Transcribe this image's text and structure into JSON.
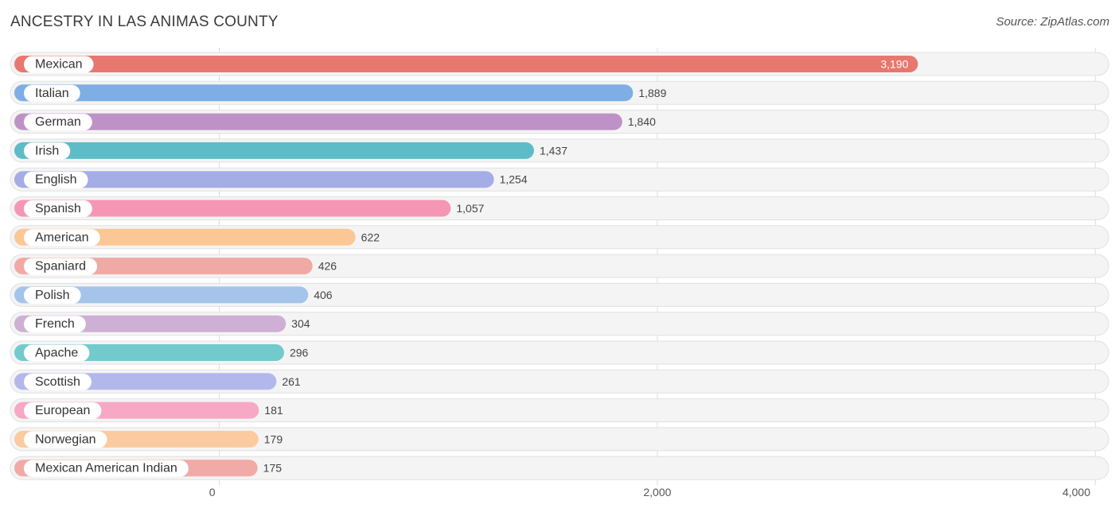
{
  "header": {
    "title": "ANCESTRY IN LAS ANIMAS COUNTY",
    "source": "Source: ZipAtlas.com"
  },
  "chart_data": {
    "type": "bar",
    "orientation": "horizontal",
    "title": "ANCESTRY IN LAS ANIMAS COUNTY",
    "categories": [
      "Mexican",
      "Italian",
      "German",
      "Irish",
      "English",
      "Spanish",
      "American",
      "Spaniard",
      "Polish",
      "French",
      "Apache",
      "Scottish",
      "European",
      "Norwegian",
      "Mexican American Indian"
    ],
    "values": [
      3190,
      1889,
      1840,
      1437,
      1254,
      1057,
      622,
      426,
      406,
      304,
      296,
      261,
      181,
      179,
      175
    ],
    "value_labels": [
      "3,190",
      "1,889",
      "1,840",
      "1,437",
      "1,254",
      "1,057",
      "622",
      "426",
      "406",
      "304",
      "296",
      "261",
      "181",
      "179",
      "175"
    ],
    "colors": [
      "#e8776f",
      "#7eaee4",
      "#be92c6",
      "#5ebcc8",
      "#a5ade6",
      "#f596b4",
      "#fbc795",
      "#f1a9a5",
      "#a4c4ea",
      "#cdb0d3",
      "#72cacc",
      "#b2b8ec",
      "#f7a8c4",
      "#fbcb9f",
      "#f1aaa8"
    ],
    "xlim": [
      0,
      4000
    ],
    "xticks": [
      0,
      2000,
      4000
    ],
    "xtick_labels": [
      "0",
      "2,000",
      "4,000"
    ],
    "grid": true,
    "legend": "none"
  }
}
